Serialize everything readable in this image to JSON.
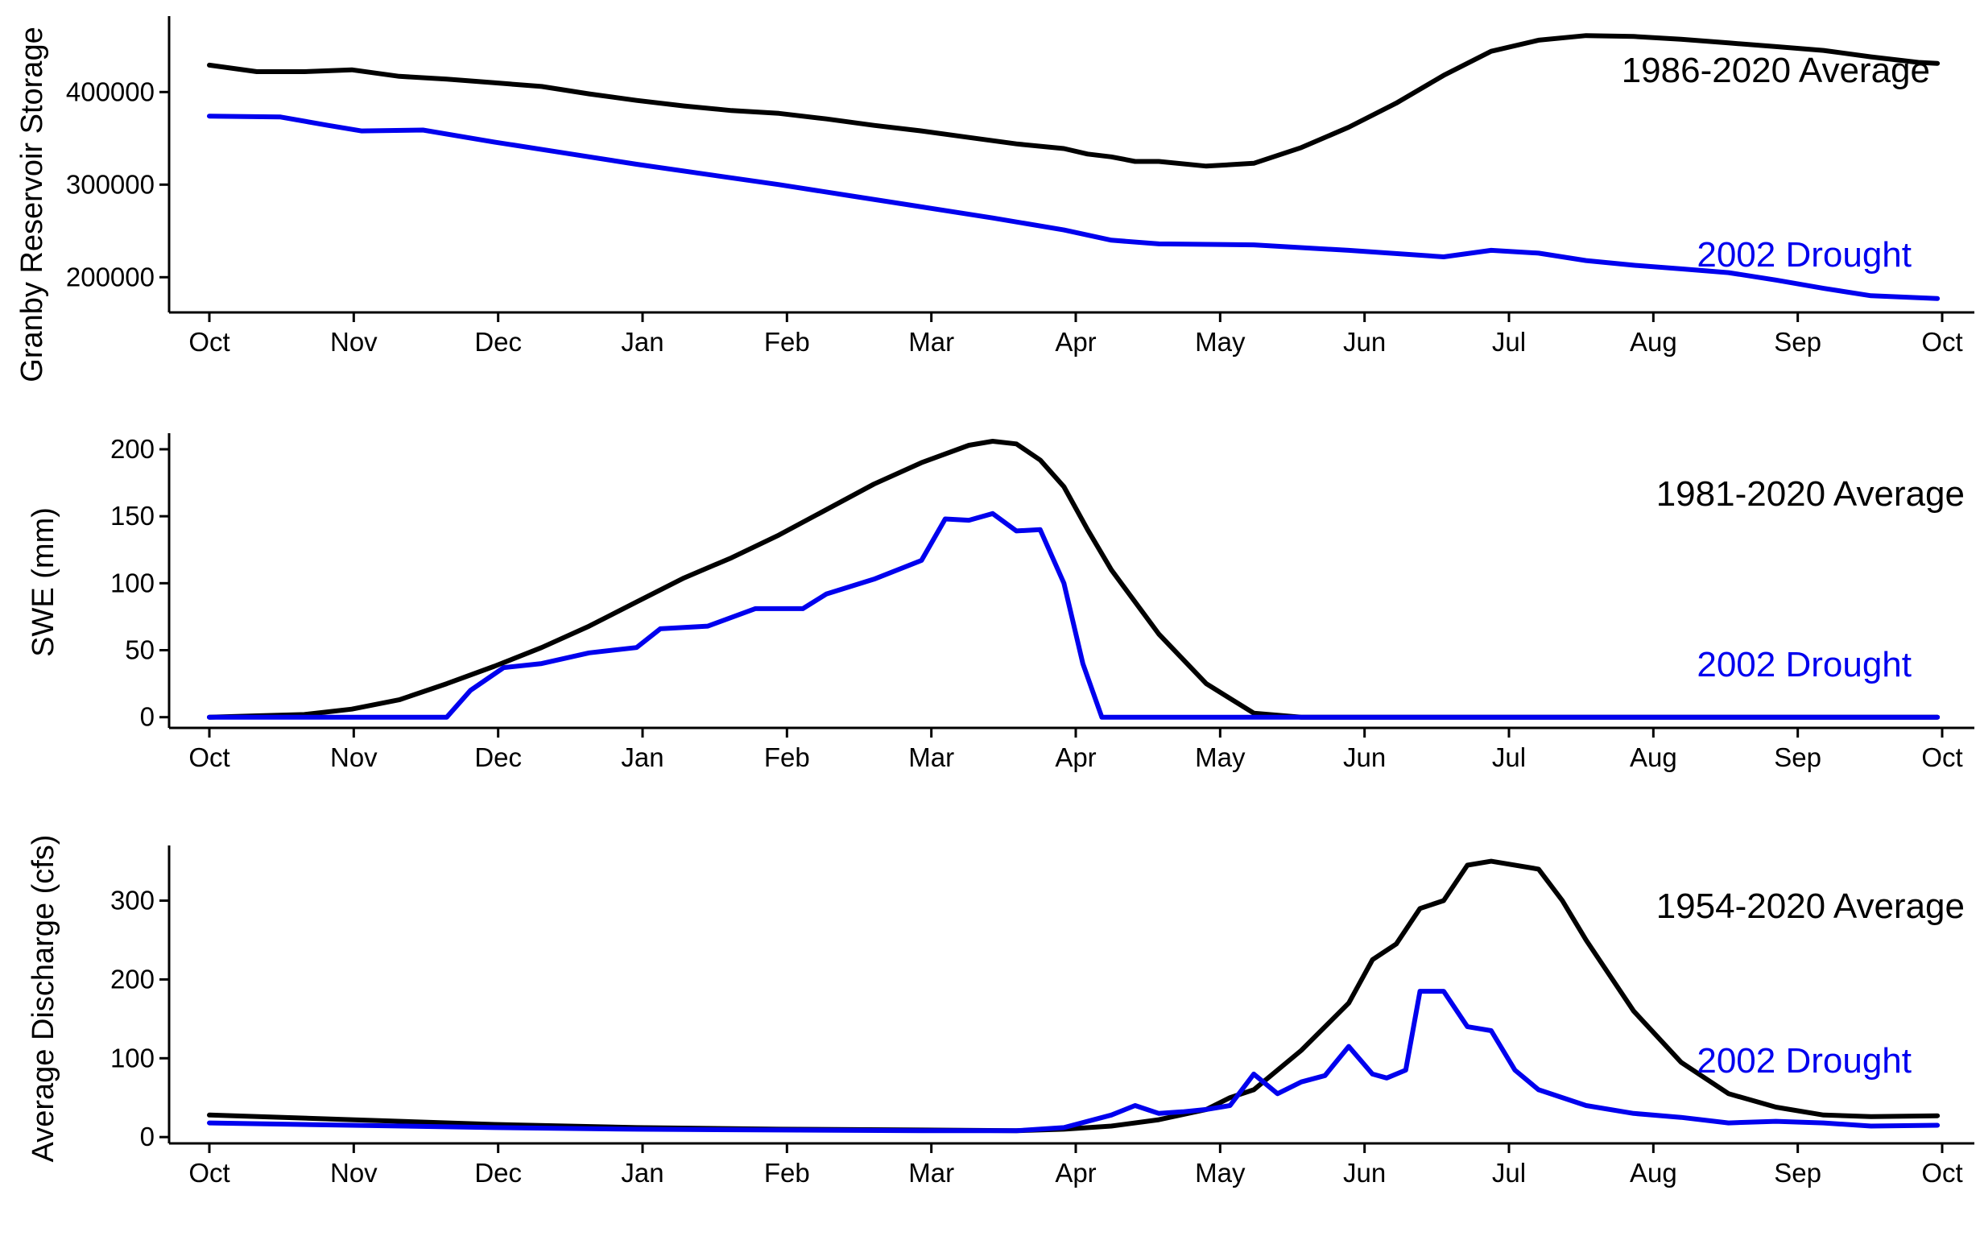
{
  "chart_data": [
    {
      "type": "line",
      "ylabel": "Granby Reservoir Storage",
      "ylim": [
        162000,
        482000
      ],
      "yticks": [
        200000,
        300000,
        400000
      ],
      "xticks": [
        "Oct",
        "Nov",
        "Dec",
        "Jan",
        "Feb",
        "Mar",
        "Apr",
        "May",
        "Jun",
        "Jul",
        "Aug",
        "Sep",
        "Oct"
      ],
      "grid": false,
      "series": [
        {
          "name": "1986-2020 Average",
          "color": "#000000",
          "x": [
            0,
            10,
            20,
            30,
            40,
            50,
            60,
            70,
            80,
            90,
            100,
            110,
            120,
            130,
            140,
            150,
            160,
            170,
            180,
            185,
            190,
            195,
            200,
            210,
            220,
            230,
            240,
            250,
            260,
            270,
            280,
            290,
            300,
            310,
            320,
            330,
            340,
            350,
            360,
            364
          ],
          "y": [
            429000,
            422000,
            422000,
            424000,
            417000,
            414000,
            410000,
            406000,
            398000,
            391000,
            385000,
            380000,
            377000,
            371000,
            364000,
            358000,
            351000,
            344000,
            339000,
            333000,
            330000,
            325000,
            325000,
            320000,
            323000,
            340000,
            362000,
            388000,
            418000,
            444000,
            456000,
            461000,
            460000,
            457000,
            453000,
            449000,
            445000,
            438000,
            432000,
            431000
          ]
        },
        {
          "name": "2002 Drought",
          "color": "#0000ee",
          "x": [
            0,
            15,
            25,
            32,
            45,
            60,
            75,
            90,
            105,
            120,
            135,
            150,
            165,
            180,
            190,
            200,
            220,
            240,
            260,
            270,
            280,
            290,
            300,
            310,
            320,
            330,
            340,
            350,
            364
          ],
          "y": [
            374000,
            373000,
            364000,
            358000,
            359000,
            346000,
            334000,
            322000,
            311000,
            300000,
            288000,
            276000,
            264000,
            251000,
            240000,
            236000,
            235000,
            229000,
            222000,
            229000,
            226000,
            218000,
            213000,
            209000,
            205000,
            197000,
            188000,
            180000,
            177000
          ]
        }
      ]
    },
    {
      "type": "line",
      "ylabel": "SWE (mm)",
      "ylim": [
        -8,
        212
      ],
      "yticks": [
        0,
        50,
        100,
        150,
        200
      ],
      "xticks": [
        "Oct",
        "Nov",
        "Dec",
        "Jan",
        "Feb",
        "Mar",
        "Apr",
        "May",
        "Jun",
        "Jul",
        "Aug",
        "Sep",
        "Oct"
      ],
      "grid": false,
      "series": [
        {
          "name": "1981-2020 Average",
          "color": "#000000",
          "x": [
            0,
            10,
            20,
            30,
            40,
            50,
            60,
            70,
            80,
            90,
            100,
            110,
            120,
            130,
            140,
            150,
            160,
            165,
            170,
            175,
            180,
            185,
            190,
            200,
            210,
            220,
            230,
            235,
            240,
            245,
            250,
            364
          ],
          "y": [
            0,
            1,
            2,
            6,
            13,
            25,
            38,
            52,
            68,
            86,
            104,
            119,
            136,
            155,
            174,
            190,
            203,
            206,
            204,
            192,
            172,
            140,
            110,
            62,
            25,
            3,
            0,
            0,
            0,
            0,
            0,
            0
          ]
        },
        {
          "name": "2002 Drought",
          "color": "#0000ee",
          "x": [
            0,
            50,
            55,
            62,
            70,
            80,
            90,
            95,
            105,
            115,
            125,
            130,
            140,
            150,
            155,
            160,
            165,
            170,
            175,
            180,
            184,
            188,
            364
          ],
          "y": [
            0,
            0,
            20,
            37,
            40,
            48,
            52,
            66,
            68,
            81,
            81,
            92,
            103,
            117,
            148,
            147,
            152,
            139,
            140,
            100,
            40,
            0,
            0
          ]
        }
      ]
    },
    {
      "type": "line",
      "ylabel": "Average Discharge (cfs)",
      "ylim": [
        -8,
        370
      ],
      "yticks": [
        0,
        100,
        200,
        300
      ],
      "xticks": [
        "Oct",
        "Nov",
        "Dec",
        "Jan",
        "Feb",
        "Mar",
        "Apr",
        "May",
        "Jun",
        "Jul",
        "Aug",
        "Sep",
        "Oct"
      ],
      "grid": false,
      "series": [
        {
          "name": "1954-2020 Average",
          "color": "#000000",
          "x": [
            0,
            30,
            60,
            90,
            120,
            150,
            170,
            180,
            190,
            200,
            210,
            215,
            220,
            230,
            240,
            245,
            250,
            255,
            260,
            265,
            270,
            280,
            285,
            290,
            300,
            310,
            320,
            330,
            340,
            350,
            364
          ],
          "y": [
            28,
            22,
            16,
            12,
            10,
            9,
            8,
            10,
            14,
            22,
            35,
            50,
            60,
            110,
            170,
            225,
            245,
            290,
            300,
            345,
            350,
            340,
            300,
            250,
            160,
            95,
            55,
            38,
            28,
            26,
            27
          ]
        },
        {
          "name": "2002 Drought",
          "color": "#0000ee",
          "x": [
            0,
            30,
            60,
            90,
            120,
            150,
            170,
            180,
            190,
            195,
            200,
            205,
            210,
            215,
            220,
            225,
            230,
            235,
            240,
            245,
            248,
            252,
            255,
            260,
            265,
            270,
            275,
            280,
            290,
            300,
            310,
            320,
            330,
            340,
            350,
            364
          ],
          "y": [
            18,
            15,
            12,
            10,
            9,
            8,
            8,
            12,
            28,
            40,
            30,
            32,
            35,
            40,
            80,
            55,
            70,
            78,
            115,
            80,
            75,
            85,
            185,
            185,
            140,
            135,
            85,
            60,
            40,
            30,
            25,
            18,
            20,
            18,
            14,
            15
          ]
        }
      ]
    }
  ],
  "annotations": [
    {
      "avg": "1986-2020 Average",
      "drought": "2002 Drought"
    },
    {
      "avg": "1981-2020 Average",
      "drought": "2002 Drought"
    },
    {
      "avg": "1954-2020 Average",
      "drought": "2002 Drought"
    }
  ]
}
